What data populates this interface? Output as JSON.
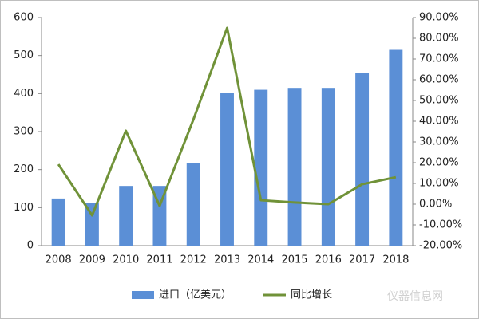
{
  "chart_data": {
    "type": "bar_line",
    "categories": [
      "2008",
      "2009",
      "2010",
      "2011",
      "2012",
      "2013",
      "2014",
      "2015",
      "2016",
      "2017",
      "2018"
    ],
    "series": [
      {
        "name": "进口（亿美元）",
        "type": "bar",
        "color": "#5b8fd6",
        "values": [
          124,
          113,
          157,
          157,
          218,
          402,
          410,
          415,
          415,
          455,
          515
        ]
      },
      {
        "name": "同比增长",
        "type": "line",
        "axis": "y2",
        "color": "#709238",
        "values": [
          19.2,
          -5.4,
          35.4,
          -0.8,
          40.8,
          85,
          1.9,
          0.8,
          0,
          9.6,
          13
        ]
      }
    ],
    "ylim": [
      0,
      600
    ],
    "yticks": [
      0,
      100,
      200,
      300,
      400,
      500,
      600
    ],
    "y2lim": [
      -20,
      90
    ],
    "y2ticks": [
      {
        "value": -20,
        "label": "-20.00%"
      },
      {
        "value": -10,
        "label": "-10.00%"
      },
      {
        "value": 0,
        "label": "0.00%"
      },
      {
        "value": 10,
        "label": "10.00%"
      },
      {
        "value": 20,
        "label": "20.00%"
      },
      {
        "value": 30,
        "label": "30.00%"
      },
      {
        "value": 40,
        "label": "40.00%"
      },
      {
        "value": 50,
        "label": "50.00%"
      },
      {
        "value": 60,
        "label": "60.00%"
      },
      {
        "value": 70,
        "label": "70.00%"
      },
      {
        "value": 80,
        "label": "80.00%"
      },
      {
        "value": 90,
        "label": "90.00%"
      }
    ],
    "legend": "bottom",
    "watermark": "仪器信息网"
  }
}
